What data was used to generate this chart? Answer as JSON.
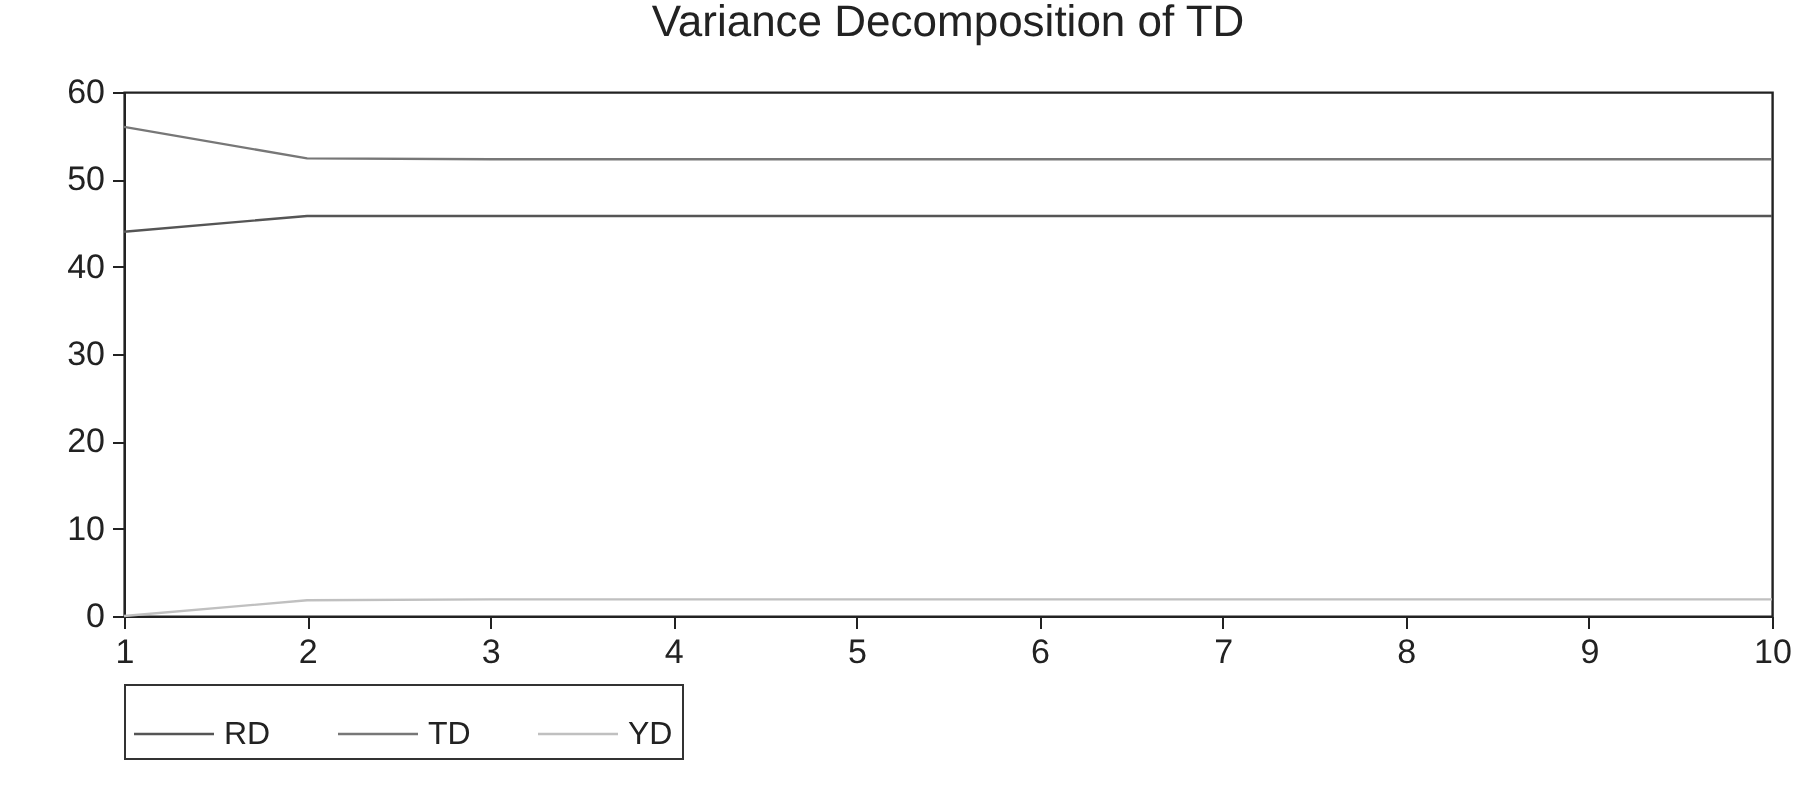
{
  "chart_data": {
    "type": "line",
    "title": "Variance Decomposition of TD",
    "x": [
      1,
      2,
      3,
      4,
      5,
      6,
      7,
      8,
      9,
      10
    ],
    "series": [
      {
        "name": "RD",
        "color": "#555555",
        "values": [
          44.0,
          45.8,
          45.8,
          45.8,
          45.8,
          45.8,
          45.8,
          45.8,
          45.8,
          45.8
        ]
      },
      {
        "name": "TD",
        "color": "#777777",
        "values": [
          56.0,
          52.4,
          52.3,
          52.3,
          52.3,
          52.3,
          52.3,
          52.3,
          52.3,
          52.3
        ]
      },
      {
        "name": "YD",
        "color": "#c0c0c0",
        "values": [
          0.0,
          1.8,
          1.9,
          1.9,
          1.9,
          1.9,
          1.9,
          1.9,
          1.9,
          1.9
        ]
      }
    ],
    "xlim": [
      1,
      10
    ],
    "xticks": [
      1,
      2,
      3,
      4,
      5,
      6,
      7,
      8,
      9,
      10
    ],
    "ylim": [
      0,
      60
    ],
    "yticks": [
      0,
      10,
      20,
      30,
      40,
      50,
      60
    ],
    "grid": false,
    "legend": "bottom",
    "marker": "none",
    "line_style": "solid"
  }
}
